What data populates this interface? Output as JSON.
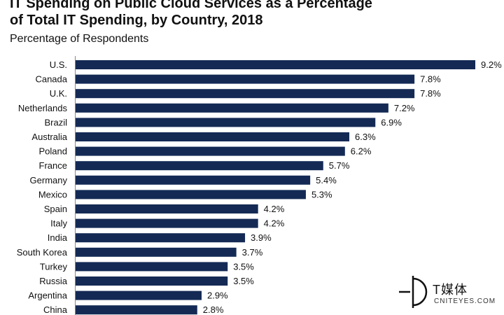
{
  "chart_data": {
    "type": "bar",
    "orientation": "horizontal",
    "title_line1": "IT Spending on Public Cloud Services as a Percentage",
    "title_line2": "of Total IT Spending, by Country, 2018",
    "subtitle": "Percentage of Respondents",
    "bar_color": "#142a55",
    "categories": [
      "U.S.",
      "Canada",
      "U.K.",
      "Netherlands",
      "Brazil",
      "Australia",
      "Poland",
      "France",
      "Germany",
      "Mexico",
      "Spain",
      "Italy",
      "India",
      "South Korea",
      "Turkey",
      "Russia",
      "Argentina",
      "China"
    ],
    "values": [
      9.2,
      7.8,
      7.8,
      7.2,
      6.9,
      6.3,
      6.2,
      5.7,
      5.4,
      5.3,
      4.2,
      4.2,
      3.9,
      3.7,
      3.5,
      3.5,
      2.9,
      2.8
    ],
    "value_labels": [
      "9.2%",
      "7.8%",
      "7.8%",
      "7.2%",
      "6.9%",
      "6.3%",
      "6.2%",
      "5.7%",
      "5.4%",
      "5.3%",
      "4.2%",
      "4.2%",
      "3.9%",
      "3.7%",
      "3.5%",
      "3.5%",
      "2.9%",
      "2.8%"
    ],
    "xlim": [
      0,
      10
    ],
    "grid": false,
    "legend": "none"
  },
  "watermark": {
    "icon": "t-media-logo-icon",
    "text": "T媒体",
    "subtext": "CNITEYES.COM"
  }
}
